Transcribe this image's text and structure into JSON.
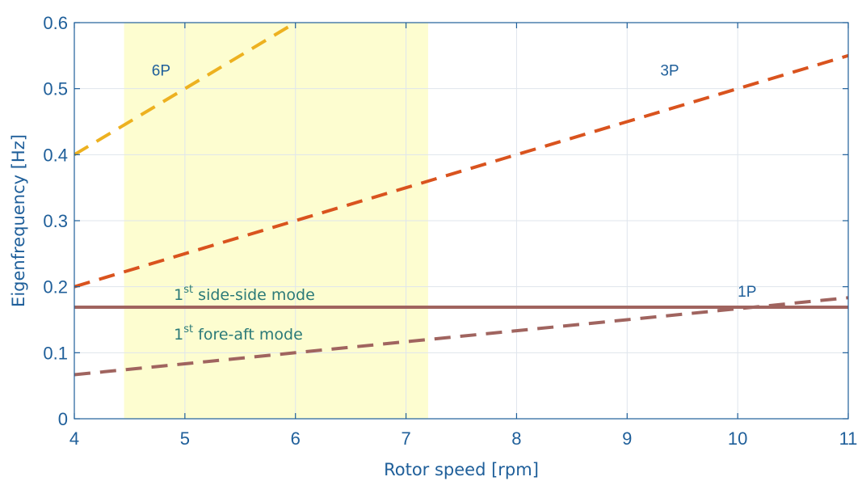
{
  "chart_data": {
    "type": "line",
    "xlabel": "Rotor speed [rpm]",
    "ylabel": "Eigenfrequency [Hz]",
    "xlim": [
      4,
      11
    ],
    "ylim": [
      0,
      0.6
    ],
    "grid": true,
    "xticks": [
      "4",
      "5",
      "6",
      "7",
      "8",
      "9",
      "10",
      "11"
    ],
    "yticks": [
      "0",
      "0.1",
      "0.2",
      "0.3",
      "0.4",
      "0.5",
      "0.6"
    ],
    "shaded_region": {
      "x": [
        4.45,
        7.2
      ],
      "color": "#fdfdd0"
    },
    "series": [
      {
        "name": "1P",
        "style": "dashed",
        "color": "#a0645f",
        "x": [
          4,
          5,
          6,
          7,
          8,
          9,
          10,
          11
        ],
        "y": [
          0.0667,
          0.0833,
          0.1,
          0.1167,
          0.1333,
          0.15,
          0.1667,
          0.1833
        ]
      },
      {
        "name": "3P",
        "style": "dashed",
        "color": "#d9531e",
        "x": [
          4,
          5,
          6,
          7,
          8,
          9,
          10,
          11
        ],
        "y": [
          0.2,
          0.25,
          0.3,
          0.35,
          0.4,
          0.45,
          0.5,
          0.55
        ]
      },
      {
        "name": "6P",
        "style": "dashed",
        "color": "#edb120",
        "x": [
          4,
          5,
          6
        ],
        "y": [
          0.4,
          0.5,
          0.6
        ]
      },
      {
        "name": "1st side-side mode",
        "style": "solid",
        "color": "#77ac30",
        "x": [
          4,
          11
        ],
        "y": [
          0.169,
          0.169
        ]
      },
      {
        "name": "1st fore-aft mode",
        "style": "solid",
        "color": "#a0645f",
        "x": [
          4,
          11
        ],
        "y": [
          0.169,
          0.169
        ]
      }
    ],
    "annotations": [
      {
        "text": "6P",
        "x": 4.7,
        "y": 0.52
      },
      {
        "text": "3P",
        "x": 9.3,
        "y": 0.52
      },
      {
        "text": "1P",
        "x": 10.0,
        "y": 0.185
      }
    ],
    "mode_labels": [
      {
        "base": "1",
        "sup": "st",
        "text": " side-side mode",
        "x": 4.9,
        "y": 0.18
      },
      {
        "base": "1",
        "sup": "st",
        "text": " fore-aft mode",
        "x": 4.9,
        "y": 0.12
      }
    ]
  }
}
